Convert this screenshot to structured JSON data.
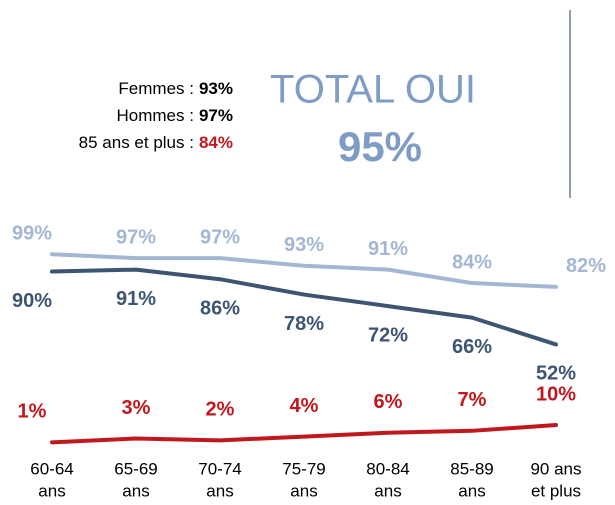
{
  "chart_data": {
    "type": "line",
    "annotations": [
      {
        "label": "Femmes :",
        "value": 93,
        "value_label": "93%",
        "color": "#000000"
      },
      {
        "label": "Hommes :",
        "value": 97,
        "value_label": "97%",
        "color": "#000000"
      },
      {
        "label": "85 ans et plus :",
        "value": 84,
        "value_label": "84%",
        "color": "#c0181e"
      }
    ],
    "total": {
      "label": "TOTAL OUI",
      "value": 95,
      "value_label": "95%",
      "color": "#7f9cc4"
    },
    "categories": [
      [
        "60-64",
        "ans"
      ],
      [
        "65-69",
        "ans"
      ],
      [
        "70-74",
        "ans"
      ],
      [
        "75-79",
        "ans"
      ],
      [
        "80-84",
        "ans"
      ],
      [
        "85-89",
        "ans"
      ],
      [
        "90 ans",
        "et plus"
      ]
    ],
    "series": [
      {
        "color": "#a3b7d3",
        "values": [
          99,
          97,
          97,
          93,
          91,
          84,
          82
        ],
        "value_labels": [
          "99%",
          "97%",
          "97%",
          "93%",
          "91%",
          "84%",
          "82%"
        ]
      },
      {
        "color": "#3d5573",
        "values": [
          90,
          91,
          86,
          78,
          72,
          66,
          52
        ],
        "value_labels": [
          "90%",
          "91%",
          "86%",
          "78%",
          "72%",
          "66%",
          "52%"
        ]
      },
      {
        "color": "#c0181e",
        "values": [
          1,
          3,
          2,
          4,
          6,
          7,
          10
        ],
        "value_labels": [
          "1%",
          "3%",
          "2%",
          "4%",
          "6%",
          "7%",
          "10%"
        ]
      }
    ],
    "ylim": [
      -3,
      108
    ]
  }
}
